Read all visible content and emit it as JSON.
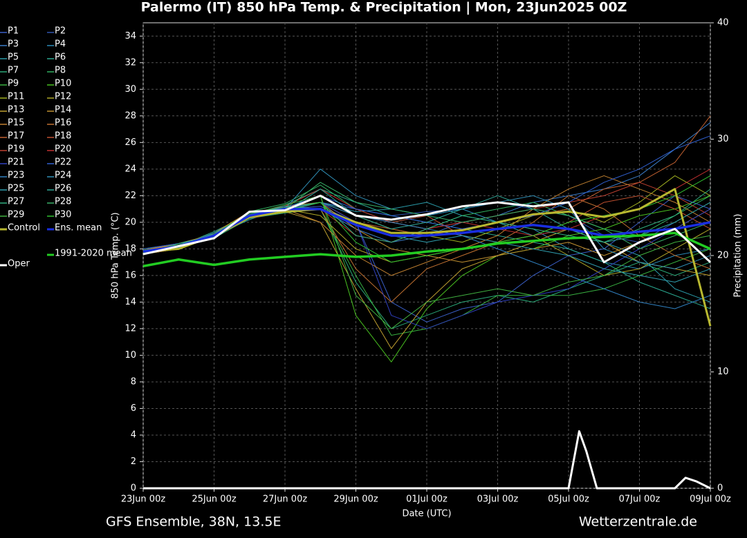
{
  "chart_data": {
    "type": "line",
    "title": "Palermo  (IT)  850 hPa Temp. & Precipitation | Mon, 23Jun2025 00Z",
    "x_label": "Date (UTC)",
    "y_label": "850 hPa Temp. (°C)",
    "y2_label": "Precipitation (mm)",
    "source": "GFS Ensemble, 38N, 13.5E",
    "credit": "Wetterzentrale.de",
    "grid": true,
    "xlim": [
      0,
      16
    ],
    "xticks": [
      {
        "value": 0,
        "label": "23Jun 00z"
      },
      {
        "value": 2,
        "label": "25Jun 00z"
      },
      {
        "value": 4,
        "label": "27Jun 00z"
      },
      {
        "value": 6,
        "label": "29Jun 00z"
      },
      {
        "value": 8,
        "label": "01Jul 00z"
      },
      {
        "value": 10,
        "label": "03Jul 00z"
      },
      {
        "value": 12,
        "label": "05Jul 00z"
      },
      {
        "value": 14,
        "label": "07Jul 00z"
      },
      {
        "value": 16,
        "label": "09Jul 00z"
      }
    ],
    "ylim": [
      0,
      35
    ],
    "yticks": [
      0,
      2,
      4,
      6,
      8,
      10,
      12,
      14,
      16,
      18,
      20,
      22,
      24,
      26,
      28,
      30,
      32,
      34
    ],
    "y2lim": [
      0,
      40
    ],
    "y2ticks": [
      0,
      10,
      20,
      30,
      40
    ],
    "x": [
      0,
      1,
      2,
      3,
      4,
      5,
      6,
      7,
      8,
      9,
      10,
      11,
      12,
      13,
      14,
      15,
      16
    ],
    "series": [
      {
        "name": "P1",
        "color": "#3a5fc8",
        "values": [
          17.9,
          18.3,
          19.0,
          20.6,
          21.0,
          21.2,
          20.0,
          14.0,
          12.5,
          13.5,
          14.0,
          16.0,
          17.5,
          18.0,
          20.0,
          22.0,
          21.0
        ]
      },
      {
        "name": "P2",
        "color": "#2f55b0",
        "values": [
          17.7,
          18.1,
          19.2,
          20.4,
          20.8,
          21.5,
          21.0,
          20.5,
          20.8,
          21.0,
          21.5,
          21.0,
          20.5,
          19.0,
          18.5,
          20.0,
          21.5
        ]
      },
      {
        "name": "P3",
        "color": "#3a7cc8",
        "values": [
          18.0,
          18.4,
          19.1,
          20.7,
          21.2,
          21.0,
          19.5,
          18.5,
          19.0,
          20.0,
          20.5,
          21.5,
          22.0,
          22.5,
          23.5,
          25.5,
          27.5
        ]
      },
      {
        "name": "P4",
        "color": "#2a8ab8",
        "values": [
          17.6,
          18.0,
          18.9,
          20.5,
          20.9,
          22.0,
          20.5,
          20.0,
          20.5,
          21.0,
          20.0,
          19.5,
          18.0,
          17.0,
          16.5,
          17.5,
          18.0
        ]
      },
      {
        "name": "P5",
        "color": "#2a9aa8",
        "values": [
          17.8,
          18.3,
          19.0,
          20.2,
          21.1,
          21.5,
          20.8,
          21.0,
          21.5,
          20.5,
          20.0,
          19.0,
          19.5,
          18.5,
          17.5,
          15.0,
          14.0
        ]
      },
      {
        "name": "P6",
        "color": "#2aa890",
        "values": [
          17.9,
          18.2,
          19.3,
          20.6,
          21.3,
          22.5,
          21.5,
          20.5,
          20.0,
          19.5,
          19.0,
          18.5,
          18.0,
          17.0,
          15.5,
          14.5,
          13.5
        ]
      },
      {
        "name": "P7",
        "color": "#2aa878",
        "values": [
          17.7,
          18.1,
          18.8,
          20.3,
          20.7,
          21.0,
          15.5,
          12.0,
          13.0,
          14.0,
          14.5,
          14.0,
          15.0,
          16.0,
          17.0,
          16.0,
          17.0
        ]
      },
      {
        "name": "P8",
        "color": "#30b060",
        "values": [
          17.8,
          18.4,
          19.1,
          20.8,
          21.4,
          22.8,
          21.0,
          20.0,
          19.5,
          20.5,
          21.0,
          21.5,
          20.5,
          19.5,
          19.0,
          20.5,
          22.0
        ]
      },
      {
        "name": "P9",
        "color": "#38b040",
        "values": [
          17.6,
          18.0,
          19.0,
          20.5,
          21.0,
          21.0,
          16.0,
          11.5,
          12.0,
          13.0,
          14.5,
          14.5,
          14.5,
          15.0,
          16.0,
          17.0,
          18.0
        ]
      },
      {
        "name": "P10",
        "color": "#48c020",
        "values": [
          18.0,
          18.3,
          19.2,
          20.7,
          21.1,
          22.0,
          13.0,
          9.5,
          13.5,
          16.0,
          17.5,
          18.0,
          19.0,
          19.5,
          20.5,
          21.0,
          22.0
        ]
      },
      {
        "name": "P11",
        "color": "#a0b020",
        "values": [
          17.8,
          18.2,
          19.0,
          20.4,
          20.9,
          21.5,
          20.5,
          19.5,
          19.0,
          18.5,
          19.5,
          20.5,
          21.0,
          20.0,
          21.5,
          23.5,
          22.0
        ]
      },
      {
        "name": "P12",
        "color": "#b0a828",
        "values": [
          17.7,
          18.1,
          19.1,
          20.6,
          21.0,
          20.5,
          18.0,
          17.0,
          17.5,
          18.0,
          18.5,
          19.0,
          17.5,
          16.0,
          16.5,
          18.0,
          19.5
        ]
      },
      {
        "name": "P13",
        "color": "#c0a030",
        "values": [
          17.9,
          18.3,
          18.9,
          20.3,
          20.8,
          20.0,
          15.0,
          10.5,
          14.0,
          16.5,
          17.5,
          18.5,
          19.5,
          18.5,
          17.0,
          16.5,
          16.0
        ]
      },
      {
        "name": "P14",
        "color": "#c09030",
        "values": [
          17.8,
          18.2,
          19.0,
          20.5,
          21.2,
          21.5,
          19.5,
          18.0,
          17.5,
          17.0,
          17.5,
          18.0,
          18.5,
          17.5,
          18.5,
          19.5,
          21.0
        ]
      },
      {
        "name": "P15",
        "color": "#c08030",
        "values": [
          17.6,
          18.0,
          19.2,
          20.8,
          21.0,
          20.0,
          17.5,
          16.0,
          17.0,
          18.0,
          19.0,
          21.0,
          22.5,
          23.5,
          22.5,
          21.5,
          20.0
        ]
      },
      {
        "name": "P16",
        "color": "#c07030",
        "values": [
          17.9,
          18.4,
          19.1,
          20.4,
          20.9,
          21.0,
          16.5,
          14.0,
          16.5,
          17.5,
          18.5,
          20.0,
          22.0,
          21.0,
          19.0,
          17.5,
          16.5
        ]
      },
      {
        "name": "P17",
        "color": "#c06030",
        "values": [
          17.8,
          18.1,
          19.0,
          20.6,
          21.1,
          21.5,
          20.0,
          19.5,
          19.0,
          19.5,
          20.0,
          20.5,
          21.0,
          22.5,
          23.0,
          24.5,
          28.0
        ]
      },
      {
        "name": "P18",
        "color": "#c05030",
        "values": [
          17.7,
          18.3,
          18.9,
          20.5,
          21.0,
          22.0,
          20.5,
          20.0,
          20.5,
          19.0,
          18.5,
          19.0,
          20.0,
          21.5,
          22.0,
          21.0,
          19.5
        ]
      },
      {
        "name": "P19",
        "color": "#c04030",
        "values": [
          17.9,
          18.2,
          19.1,
          20.3,
          20.8,
          21.0,
          19.0,
          18.5,
          19.5,
          20.0,
          20.5,
          21.0,
          21.5,
          22.0,
          23.0,
          22.0,
          20.5
        ]
      },
      {
        "name": "P20",
        "color": "#c03030",
        "values": [
          17.8,
          18.0,
          19.0,
          20.7,
          21.2,
          22.5,
          21.0,
          20.0,
          19.5,
          20.0,
          19.5,
          19.0,
          19.5,
          20.5,
          21.0,
          22.5,
          24.0
        ]
      },
      {
        "name": "P21",
        "color": "#3040c0",
        "values": [
          17.6,
          18.2,
          19.2,
          20.5,
          21.0,
          21.5,
          20.0,
          13.0,
          12.0,
          13.0,
          14.0,
          14.5,
          15.0,
          16.5,
          18.0,
          19.5,
          21.0
        ]
      },
      {
        "name": "P22",
        "color": "#3060d0",
        "values": [
          18.0,
          18.4,
          19.0,
          20.6,
          21.1,
          22.0,
          21.0,
          20.5,
          20.0,
          19.5,
          20.0,
          20.5,
          21.5,
          23.0,
          24.0,
          25.5,
          26.5
        ]
      },
      {
        "name": "P23",
        "color": "#3080c0",
        "values": [
          17.8,
          18.1,
          18.9,
          20.4,
          20.9,
          21.5,
          20.5,
          20.0,
          19.5,
          19.0,
          18.0,
          17.0,
          16.0,
          15.0,
          14.0,
          13.5,
          14.5
        ]
      },
      {
        "name": "P24",
        "color": "#3090b8",
        "values": [
          17.7,
          18.3,
          19.1,
          20.5,
          21.0,
          24.0,
          22.0,
          21.0,
          20.5,
          21.0,
          21.5,
          22.0,
          21.0,
          18.0,
          17.0,
          16.5,
          17.5
        ]
      },
      {
        "name": "P25",
        "color": "#30a0b0",
        "values": [
          17.9,
          18.2,
          19.0,
          20.6,
          21.2,
          21.0,
          20.0,
          19.0,
          18.5,
          19.0,
          18.5,
          18.0,
          17.5,
          16.5,
          16.0,
          15.5,
          16.5
        ]
      },
      {
        "name": "P26",
        "color": "#30a898",
        "values": [
          17.8,
          18.0,
          19.2,
          20.5,
          20.8,
          22.5,
          20.5,
          19.5,
          20.0,
          21.0,
          22.0,
          21.0,
          19.5,
          18.5,
          19.0,
          20.0,
          21.5
        ]
      },
      {
        "name": "P27",
        "color": "#30b080",
        "values": [
          17.6,
          18.4,
          19.0,
          20.7,
          21.1,
          21.5,
          19.0,
          18.5,
          19.5,
          20.5,
          20.0,
          19.5,
          19.0,
          18.5,
          19.5,
          20.5,
          22.5
        ]
      },
      {
        "name": "P28",
        "color": "#38b068",
        "values": [
          17.9,
          18.1,
          19.1,
          20.3,
          21.0,
          23.0,
          21.5,
          21.0,
          20.5,
          20.0,
          20.5,
          21.0,
          20.5,
          19.5,
          18.0,
          19.0,
          20.0
        ]
      },
      {
        "name": "P29",
        "color": "#40b040",
        "values": [
          17.8,
          18.3,
          18.9,
          20.6,
          21.3,
          22.0,
          14.5,
          12.0,
          14.0,
          14.5,
          15.0,
          14.5,
          15.5,
          16.0,
          17.5,
          18.5,
          19.0
        ]
      },
      {
        "name": "P30",
        "color": "#30c030",
        "values": [
          17.7,
          18.2,
          19.0,
          20.5,
          20.9,
          21.5,
          18.5,
          17.0,
          17.5,
          18.0,
          18.5,
          19.0,
          20.0,
          20.5,
          21.0,
          22.0,
          23.5
        ]
      },
      {
        "name": "Control",
        "color": "#b8b830",
        "width": 3,
        "values": [
          17.8,
          18.0,
          19.0,
          20.4,
          20.8,
          21.0,
          20.0,
          19.2,
          19.2,
          19.4,
          20.0,
          20.6,
          20.8,
          20.4,
          21.0,
          22.5,
          12.2
        ]
      },
      {
        "name": "Ens. mean",
        "color": "#1a2ee0",
        "width": 3.5,
        "values": [
          17.8,
          18.2,
          19.0,
          20.5,
          21.0,
          21.0,
          19.8,
          19.0,
          19.0,
          19.2,
          19.5,
          19.8,
          19.5,
          19.0,
          19.3,
          19.5,
          20.0
        ]
      },
      {
        "name": "1991-2020 mean",
        "color": "#22cc22",
        "width": 3.5,
        "values": [
          16.7,
          17.2,
          16.8,
          17.2,
          17.4,
          17.6,
          17.4,
          17.5,
          17.8,
          18.0,
          18.4,
          18.6,
          18.8,
          18.9,
          19.0,
          19.2,
          18.0
        ]
      },
      {
        "name": "Oper",
        "color": "#ffffff",
        "width": 3,
        "values": [
          17.6,
          18.2,
          18.8,
          20.8,
          20.9,
          22.0,
          20.5,
          20.2,
          20.6,
          21.2,
          21.5,
          21.2,
          21.5,
          17.0,
          18.5,
          19.5,
          17.0
        ]
      }
    ],
    "precipitation": {
      "axis": "y2",
      "color": "#ffffff",
      "x": [
        0,
        12,
        12.3,
        12.5,
        12.8,
        13,
        15,
        15.3,
        15.6,
        16
      ],
      "values": [
        0,
        0,
        4.9,
        3.2,
        0,
        0,
        0,
        0.9,
        0.6,
        0
      ]
    }
  }
}
